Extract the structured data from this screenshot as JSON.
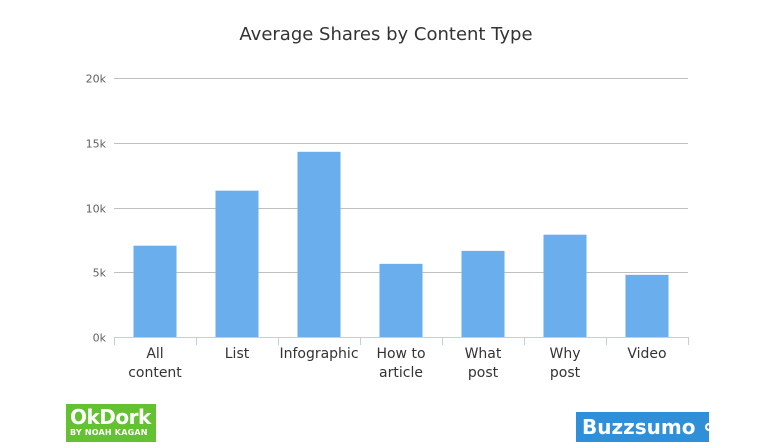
{
  "chart_data": {
    "type": "bar",
    "title": "Average Shares by Content Type",
    "xlabel": "",
    "ylabel": "",
    "categories": [
      [
        "All",
        "content"
      ],
      [
        "List"
      ],
      [
        "Infographic"
      ],
      [
        "How to",
        "article"
      ],
      [
        "What",
        "post"
      ],
      [
        "Why",
        "post"
      ],
      [
        "Video"
      ]
    ],
    "values": [
      7050,
      11300,
      14300,
      5650,
      6650,
      7900,
      4800
    ],
    "ylim": [
      0,
      20000
    ],
    "yticks": [
      {
        "value": 0,
        "label": "0k"
      },
      {
        "value": 5000,
        "label": "5k"
      },
      {
        "value": 10000,
        "label": "10k"
      },
      {
        "value": 15000,
        "label": "15k"
      },
      {
        "value": 20000,
        "label": "20k"
      }
    ],
    "grid": true,
    "bar_color": "#6aaeee"
  },
  "logos": {
    "okdork": {
      "text": "OkDork",
      "subtext": "BY NOAH KAGAN",
      "color": "#64c232"
    },
    "buzzsumo": {
      "text": "Buzzsumo",
      "color": "#2f8fd8"
    }
  }
}
